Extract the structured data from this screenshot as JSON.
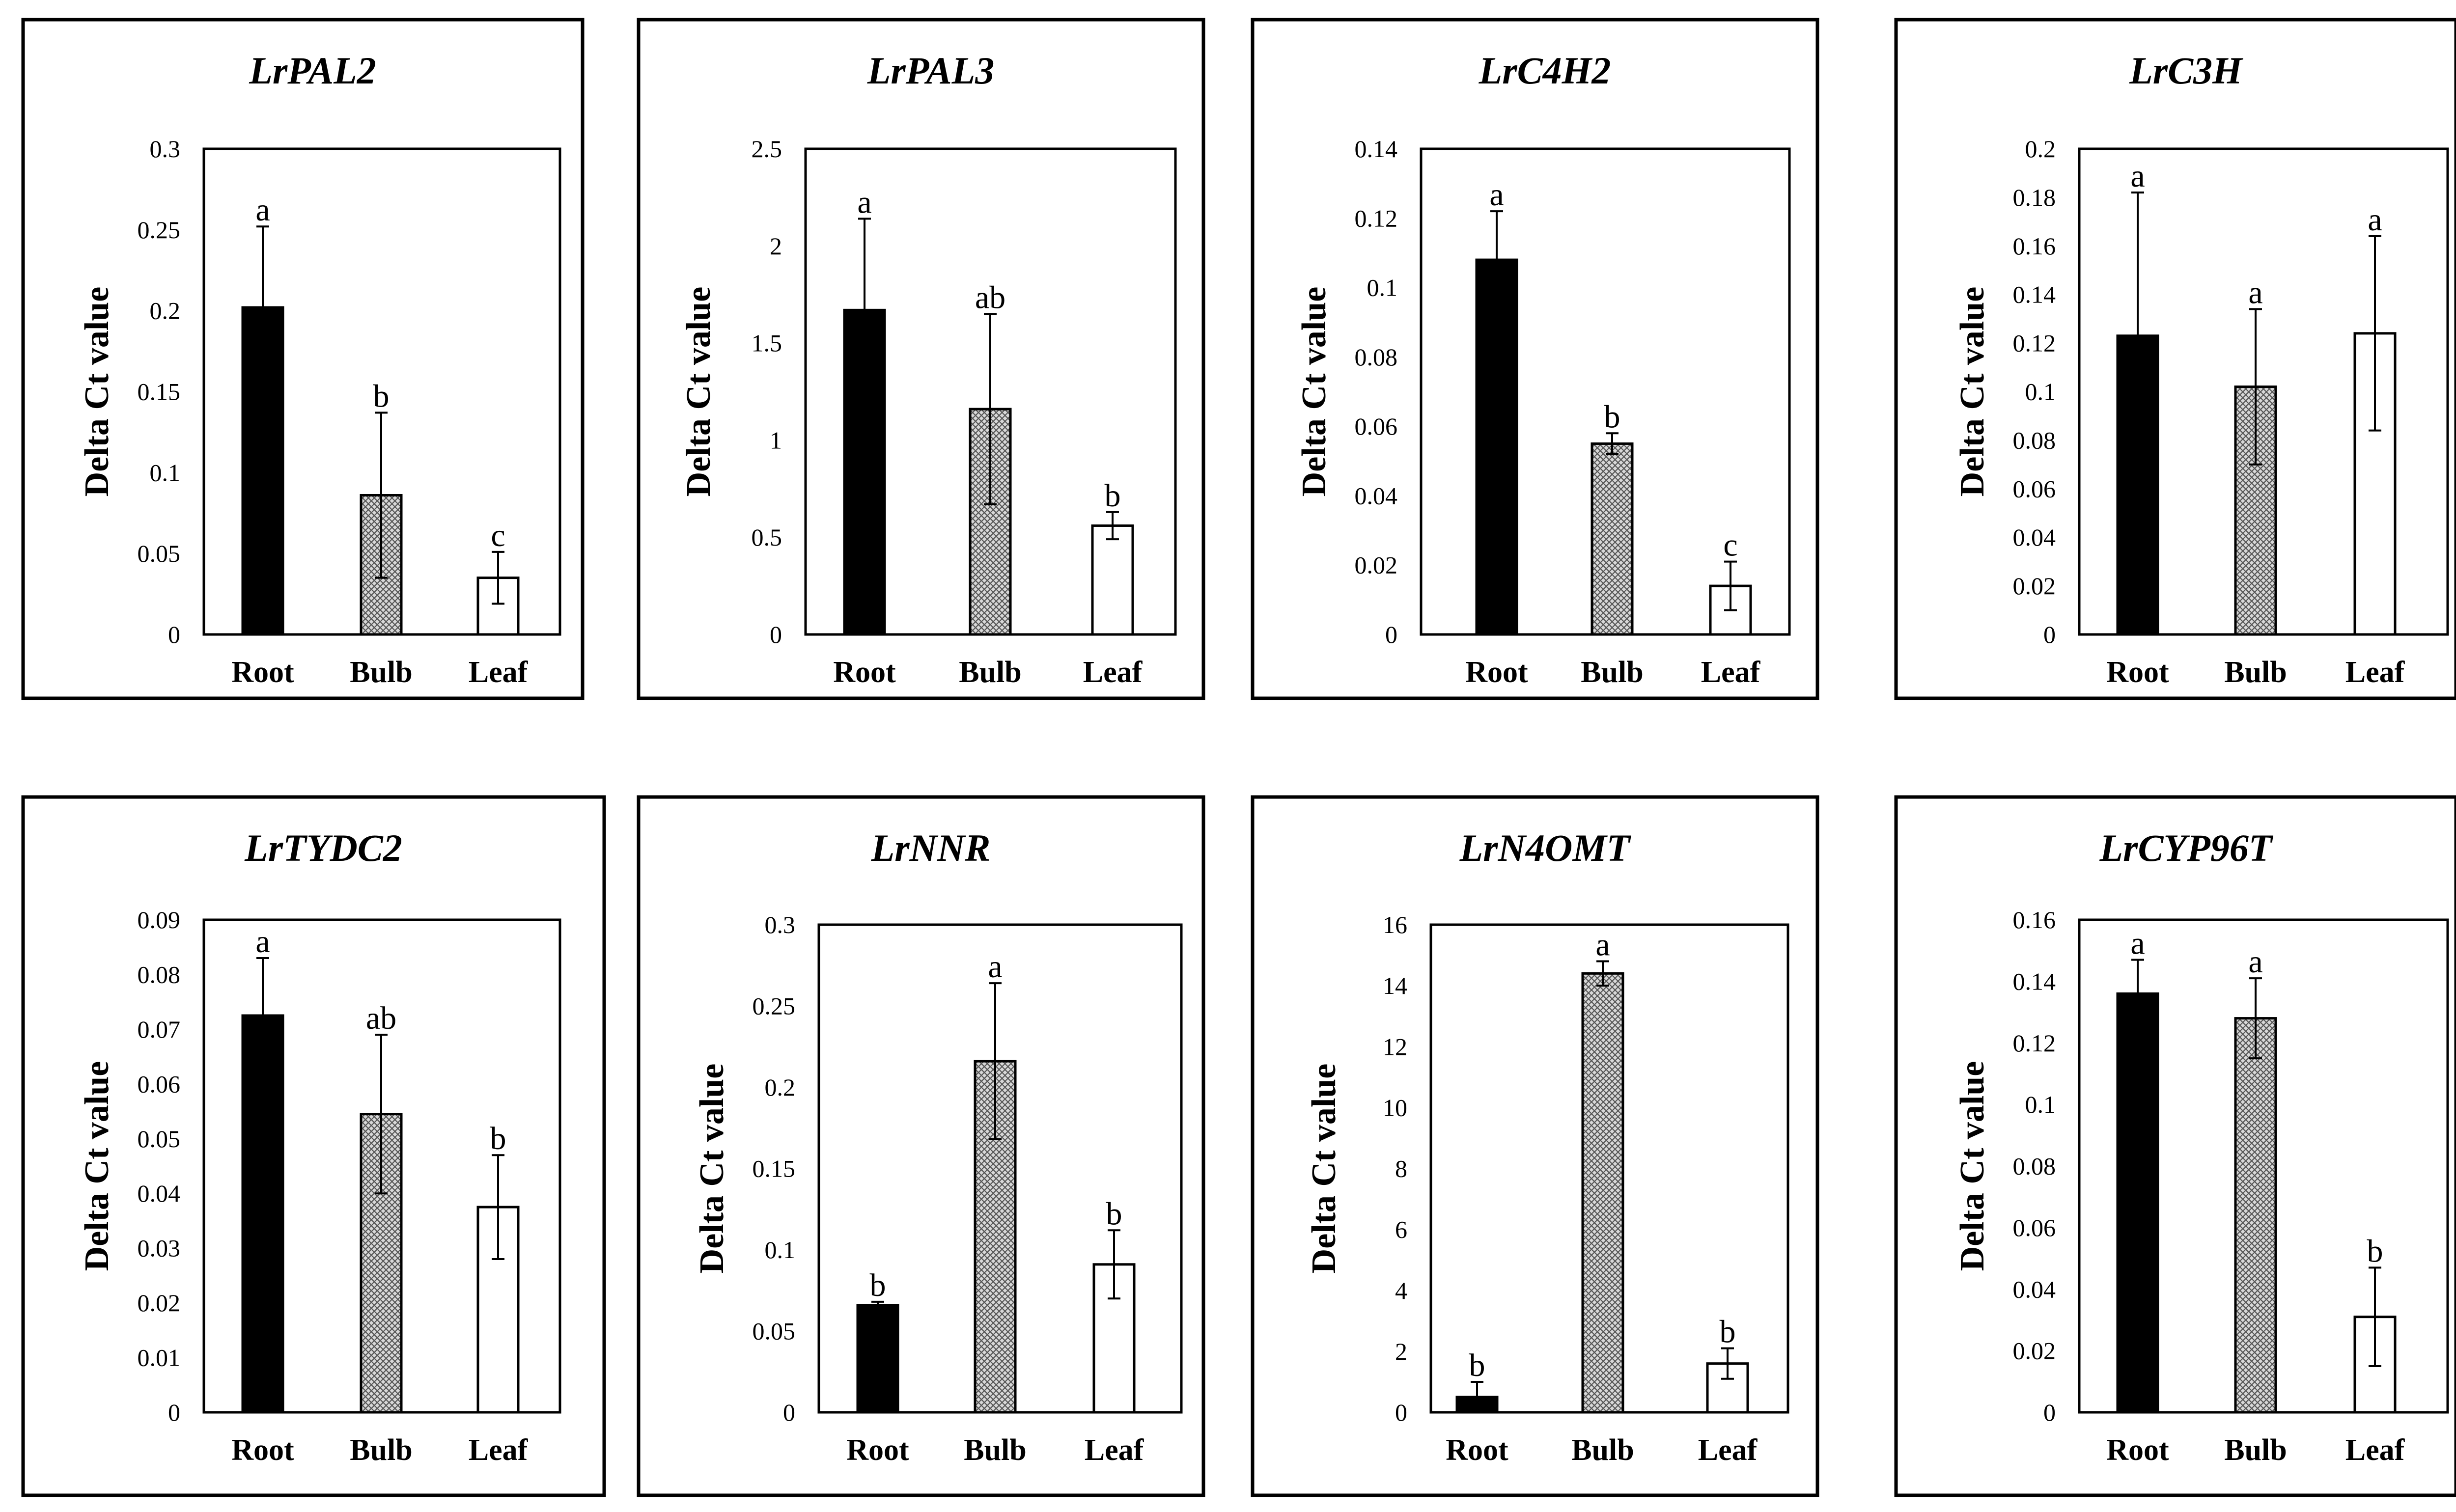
{
  "figure_description": "Gene expression (Delta Ct value) of eight genes in Root, Bulb and Leaf tissues",
  "colors": {
    "root": "#000000",
    "bulb": "pattern-crosshatch-gray",
    "leaf": "#ffffff",
    "frame": "#000000"
  },
  "chart_data": [
    {
      "type": "bar",
      "title": "LrPAL2",
      "ylabel": "Delta Ct value",
      "categories": [
        "Root",
        "Bulb",
        "Leaf"
      ],
      "values": [
        0.202,
        0.086,
        0.035
      ],
      "errors": [
        0.05,
        0.051,
        0.016
      ],
      "significance": [
        "a",
        "b",
        "c"
      ],
      "ylim": [
        0,
        0.3
      ],
      "yticks": [
        "0",
        "0.05",
        "0.1",
        "0.15",
        "0.2",
        "0.25",
        "0.3"
      ]
    },
    {
      "type": "bar",
      "title": "LrPAL3",
      "ylabel": "Delta Ct value",
      "categories": [
        "Root",
        "Bulb",
        "Leaf"
      ],
      "values": [
        1.67,
        1.16,
        0.56
      ],
      "errors": [
        0.47,
        0.49,
        0.07
      ],
      "significance": [
        "a",
        "ab",
        "b"
      ],
      "ylim": [
        0,
        2.5
      ],
      "yticks": [
        "0",
        "0.5",
        "1",
        "1.5",
        "2",
        "2.5"
      ]
    },
    {
      "type": "bar",
      "title": "LrC4H2",
      "ylabel": "Delta Ct value",
      "categories": [
        "Root",
        "Bulb",
        "Leaf"
      ],
      "values": [
        0.108,
        0.055,
        0.014
      ],
      "errors": [
        0.014,
        0.003,
        0.007
      ],
      "significance": [
        "a",
        "b",
        "c"
      ],
      "ylim": [
        0,
        0.14
      ],
      "yticks": [
        "0",
        "0.02",
        "0.04",
        "0.06",
        "0.08",
        "0.1",
        "0.12",
        "0.14"
      ]
    },
    {
      "type": "bar",
      "title": "LrC3H",
      "ylabel": "Delta Ct value",
      "categories": [
        "Root",
        "Bulb",
        "Leaf"
      ],
      "values": [
        0.123,
        0.102,
        0.124
      ],
      "errors": [
        0.059,
        0.032,
        0.04
      ],
      "significance": [
        "a",
        "a",
        "a"
      ],
      "ylim": [
        0,
        0.2
      ],
      "yticks": [
        "0",
        "0.02",
        "0.04",
        "0.06",
        "0.08",
        "0.1",
        "0.12",
        "0.14",
        "0.16",
        "0.18",
        "0.2"
      ]
    },
    {
      "type": "bar",
      "title": "LrTYDC2",
      "ylabel": "Delta Ct value",
      "categories": [
        "Root",
        "Bulb",
        "Leaf"
      ],
      "values": [
        0.0725,
        0.0545,
        0.0375
      ],
      "errors": [
        0.0105,
        0.0145,
        0.0095
      ],
      "significance": [
        "a",
        "ab",
        "b"
      ],
      "ylim": [
        0,
        0.09
      ],
      "yticks": [
        "0",
        "0.01",
        "0.02",
        "0.03",
        "0.04",
        "0.05",
        "0.06",
        "0.07",
        "0.08",
        "0.09"
      ]
    },
    {
      "type": "bar",
      "title": "LrNNR",
      "ylabel": "Delta Ct value",
      "categories": [
        "Root",
        "Bulb",
        "Leaf"
      ],
      "values": [
        0.066,
        0.216,
        0.091
      ],
      "errors": [
        0.002,
        0.048,
        0.021
      ],
      "significance": [
        "b",
        "a",
        "b"
      ],
      "ylim": [
        0,
        0.3
      ],
      "yticks": [
        "0",
        "0.05",
        "0.1",
        "0.15",
        "0.2",
        "0.25",
        "0.3"
      ]
    },
    {
      "type": "bar",
      "title": "LrN4OMT",
      "ylabel": "Delta Ct value",
      "categories": [
        "Root",
        "Bulb",
        "Leaf"
      ],
      "values": [
        0.5,
        14.4,
        1.6
      ],
      "errors": [
        0.5,
        0.4,
        0.5
      ],
      "significance": [
        "b",
        "a",
        "b"
      ],
      "ylim": [
        0,
        16
      ],
      "yticks": [
        "0",
        "2",
        "4",
        "6",
        "8",
        "10",
        "12",
        "14",
        "16"
      ]
    },
    {
      "type": "bar",
      "title": "LrCYP96T",
      "ylabel": "Delta Ct value",
      "categories": [
        "Root",
        "Bulb",
        "Leaf"
      ],
      "values": [
        0.136,
        0.128,
        0.031
      ],
      "errors": [
        0.011,
        0.013,
        0.016
      ],
      "significance": [
        "a",
        "a",
        "b"
      ],
      "ylim": [
        0,
        0.16
      ],
      "yticks": [
        "0",
        "0.02",
        "0.04",
        "0.06",
        "0.08",
        "0.1",
        "0.12",
        "0.14",
        "0.16"
      ]
    }
  ]
}
